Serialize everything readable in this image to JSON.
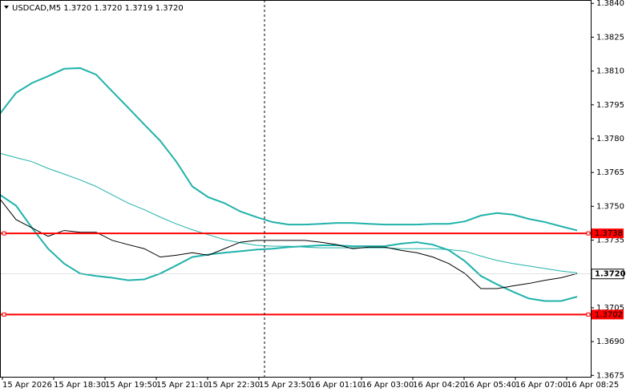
{
  "chart_data": {
    "type": "line",
    "title": "USDCAD,M5  1.3720 1.3720 1.3719 1.3720",
    "xtick_labels": [
      "15 Apr 2026",
      "15 Apr 18:30",
      "15 Apr 19:50",
      "15 Apr 21:10",
      "15 Apr 22:30",
      "15 Apr 23:50",
      "16 Apr 01:10",
      "16 Apr 03:00",
      "16 Apr 04:20",
      "16 Apr 05:40",
      "16 Apr 07:00",
      "16 Apr 08:25"
    ],
    "ylim": [
      1.36744,
      1.38415
    ],
    "yticks": [
      {
        "value": 1.384,
        "label": "1.3840"
      },
      1.3825,
      {
        "value": 1.381,
        "label": "1.3810"
      },
      1.3795,
      {
        "value": 1.378,
        "label": "1.3780"
      },
      1.3765,
      {
        "value": 1.375,
        "label": "1.3750"
      },
      1.3735,
      1.3705,
      {
        "value": 1.369,
        "label": "1.3690"
      },
      1.3675
    ],
    "series": [
      {
        "color": "#20b2aa",
        "values": [
          1.37911,
          1.38003,
          1.38047,
          1.38077,
          1.3811,
          1.38113,
          1.38084,
          1.3801,
          1.37937,
          1.37863,
          1.3779,
          1.37698,
          1.37588,
          1.3754,
          1.37514,
          1.37477,
          1.37452,
          1.3743,
          1.37419,
          1.37419,
          1.37422,
          1.37426,
          1.37426,
          1.37422,
          1.37419,
          1.37419,
          1.37419,
          1.37422,
          1.37422,
          1.37433,
          1.37459,
          1.3747,
          1.37463,
          1.37444,
          1.3743,
          1.37411,
          1.37393
        ]
      },
      {
        "color": "#20b2aa",
        "values": [
          1.37735,
          1.37716,
          1.37698,
          1.37668,
          1.37643,
          1.37617,
          1.37588,
          1.37551,
          1.37514,
          1.37485,
          1.37452,
          1.37422,
          1.37396,
          1.37374,
          1.37352,
          1.37338,
          1.37327,
          1.37323,
          1.37323,
          1.37319,
          1.37316,
          1.37316,
          1.37316,
          1.37316,
          1.37316,
          1.37312,
          1.37312,
          1.37312,
          1.37308,
          1.37301,
          1.37279,
          1.3726,
          1.37246,
          1.37235,
          1.37224,
          1.37213,
          1.37205
        ]
      },
      {
        "color": "#20b2aa",
        "values": [
          1.37551,
          1.37503,
          1.37404,
          1.37312,
          1.37246,
          1.37202,
          1.37191,
          1.37183,
          1.37172,
          1.37176,
          1.37202,
          1.37238,
          1.37275,
          1.37286,
          1.37294,
          1.37301,
          1.37308,
          1.37312,
          1.37319,
          1.37323,
          1.37327,
          1.37327,
          1.37323,
          1.37323,
          1.37323,
          1.37334,
          1.37341,
          1.3733,
          1.37305,
          1.37257,
          1.37191,
          1.37154,
          1.37121,
          1.37091,
          1.3708,
          1.3708,
          1.37099
        ]
      },
      {
        "color": "#000000",
        "values": [
          1.37532,
          1.37441,
          1.37404,
          1.37367,
          1.37393,
          1.37385,
          1.37385,
          1.37349,
          1.3733,
          1.37312,
          1.37275,
          1.37283,
          1.37294,
          1.37283,
          1.37312,
          1.37341,
          1.37349,
          1.37349,
          1.37349,
          1.37349,
          1.37341,
          1.3733,
          1.37312,
          1.37319,
          1.37319,
          1.37305,
          1.37294,
          1.37275,
          1.37246,
          1.37202,
          1.37135,
          1.37135,
          1.37147,
          1.37158,
          1.37172,
          1.37183,
          1.37202
        ]
      }
    ],
    "levels": [
      {
        "value": 1.3738,
        "color": "#ff0000"
      },
      {
        "value": 1.3702,
        "color": "#ff0000"
      }
    ],
    "last_price": {
      "value": 1.372,
      "label": "1.3720"
    }
  }
}
